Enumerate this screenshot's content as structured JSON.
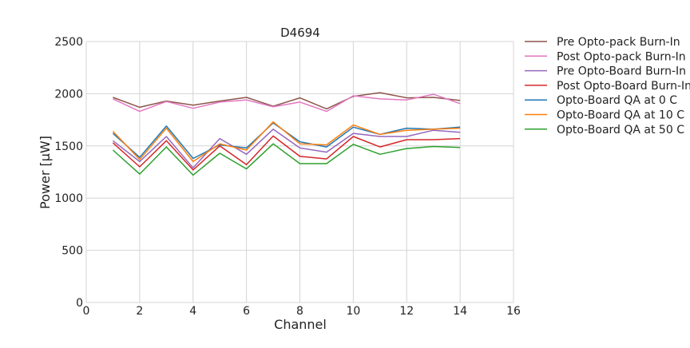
{
  "chart_data": {
    "type": "line",
    "title": "D4694",
    "xlabel": "Channel",
    "ylabel": "Power [μW]",
    "xlim": [
      0,
      16
    ],
    "ylim": [
      0,
      2500
    ],
    "xticks": [
      0,
      2,
      4,
      6,
      8,
      10,
      12,
      14,
      16
    ],
    "yticks": [
      0,
      500,
      1000,
      1500,
      2000,
      2500
    ],
    "grid": true,
    "legend_position": "outside-right",
    "x": [
      1,
      2,
      3,
      4,
      5,
      6,
      7,
      8,
      9,
      10,
      11,
      12,
      13,
      14
    ],
    "series": [
      {
        "name": "Pre Opto-pack Burn-In",
        "color": "#8c564b",
        "values": [
          1965,
          1870,
          1930,
          1890,
          1930,
          1965,
          1880,
          1960,
          1855,
          1975,
          2010,
          1960,
          1965,
          1935
        ]
      },
      {
        "name": "Post Opto-pack Burn-In",
        "color": "#e377c2",
        "values": [
          1950,
          1830,
          1925,
          1860,
          1920,
          1940,
          1875,
          1920,
          1830,
          1980,
          1950,
          1940,
          1995,
          1905
        ]
      },
      {
        "name": "Pre Opto-Board Burn-In",
        "color": "#9467bd",
        "values": [
          1550,
          1350,
          1590,
          1290,
          1570,
          1420,
          1660,
          1480,
          1440,
          1620,
          1590,
          1590,
          1650,
          1630
        ]
      },
      {
        "name": "Post Opto-Board Burn-In",
        "color": "#d62728",
        "values": [
          1530,
          1300,
          1550,
          1270,
          1500,
          1320,
          1595,
          1400,
          1375,
          1590,
          1490,
          1560,
          1560,
          1570
        ]
      },
      {
        "name": "Opto-Board QA at 0 C",
        "color": "#1f77b4",
        "values": [
          1620,
          1390,
          1690,
          1380,
          1510,
          1480,
          1720,
          1540,
          1490,
          1680,
          1610,
          1670,
          1660,
          1680
        ]
      },
      {
        "name": "Opto-Board QA at 10 C",
        "color": "#ff7f0e",
        "values": [
          1640,
          1370,
          1670,
          1350,
          1520,
          1460,
          1730,
          1520,
          1510,
          1700,
          1610,
          1650,
          1660,
          1670
        ]
      },
      {
        "name": "Opto-Board QA at 50 C",
        "color": "#2ca02c",
        "values": [
          1460,
          1230,
          1490,
          1220,
          1430,
          1280,
          1520,
          1330,
          1330,
          1515,
          1420,
          1475,
          1495,
          1485
        ]
      }
    ]
  }
}
